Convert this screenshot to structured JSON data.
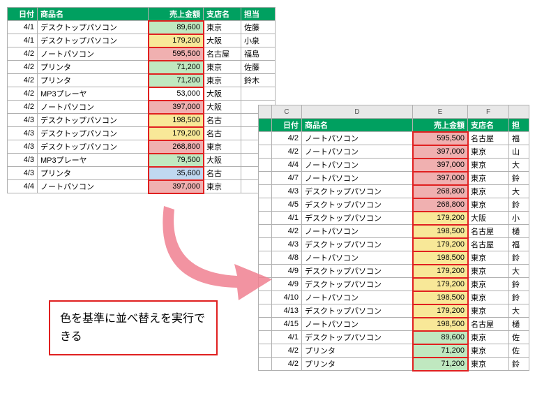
{
  "highlight_box_color": "#e02020",
  "arrow_color": "#f08090",
  "callout_text": "色を基準に並べ替えを実行できる",
  "colors": {
    "pink": "#f0b0b0",
    "yellow": "#f8e898",
    "green": "#c0e8c0",
    "blue": "#c0d8f0"
  },
  "left": {
    "headers": [
      "日付",
      "商品名",
      "売上金額",
      "支店名",
      "担当"
    ],
    "rows": [
      {
        "d": "4/1",
        "n": "デスクトップパソコン",
        "a": "89,600",
        "b": "東京",
        "p": "佐藤",
        "c": "green"
      },
      {
        "d": "4/1",
        "n": "デスクトップパソコン",
        "a": "179,200",
        "b": "大阪",
        "p": "小泉",
        "c": "yellow"
      },
      {
        "d": "4/2",
        "n": "ノートパソコン",
        "a": "595,500",
        "b": "名古屋",
        "p": "福島",
        "c": "pink"
      },
      {
        "d": "4/2",
        "n": "プリンタ",
        "a": "71,200",
        "b": "東京",
        "p": "佐藤",
        "c": "green"
      },
      {
        "d": "4/2",
        "n": "プリンタ",
        "a": "71,200",
        "b": "東京",
        "p": "鈴木",
        "c": "green"
      },
      {
        "d": "4/2",
        "n": "MP3プレーヤ",
        "a": "53,000",
        "b": "大阪",
        "p": "",
        "c": ""
      },
      {
        "d": "4/2",
        "n": "ノートパソコン",
        "a": "397,000",
        "b": "大阪",
        "p": "",
        "c": "pink"
      },
      {
        "d": "4/3",
        "n": "デスクトップパソコン",
        "a": "198,500",
        "b": "名古",
        "p": "",
        "c": "yellow"
      },
      {
        "d": "4/3",
        "n": "デスクトップパソコン",
        "a": "179,200",
        "b": "名古",
        "p": "",
        "c": "yellow"
      },
      {
        "d": "4/3",
        "n": "デスクトップパソコン",
        "a": "268,800",
        "b": "東京",
        "p": "",
        "c": "pink"
      },
      {
        "d": "4/3",
        "n": "MP3プレーヤ",
        "a": "79,500",
        "b": "大阪",
        "p": "",
        "c": "green"
      },
      {
        "d": "4/3",
        "n": "プリンタ",
        "a": "35,600",
        "b": "名古",
        "p": "",
        "c": "blue"
      },
      {
        "d": "4/4",
        "n": "ノートパソコン",
        "a": "397,000",
        "b": "東京",
        "p": "",
        "c": "pink"
      }
    ]
  },
  "right": {
    "col_labels": [
      "",
      "C",
      "D",
      "E",
      "F",
      ""
    ],
    "headers": [
      "日付",
      "商品名",
      "売上金額",
      "支店名",
      "担"
    ],
    "rows": [
      {
        "d": "4/2",
        "n": "ノートパソコン",
        "a": "595,500",
        "b": "名古屋",
        "p": "福",
        "c": "pink"
      },
      {
        "d": "4/2",
        "n": "ノートパソコン",
        "a": "397,000",
        "b": "東京",
        "p": "山",
        "c": "pink"
      },
      {
        "d": "4/4",
        "n": "ノートパソコン",
        "a": "397,000",
        "b": "東京",
        "p": "大",
        "c": "pink"
      },
      {
        "d": "4/7",
        "n": "ノートパソコン",
        "a": "397,000",
        "b": "東京",
        "p": "鈴",
        "c": "pink"
      },
      {
        "d": "4/3",
        "n": "デスクトップパソコン",
        "a": "268,800",
        "b": "東京",
        "p": "大",
        "c": "pink"
      },
      {
        "d": "4/5",
        "n": "デスクトップパソコン",
        "a": "268,800",
        "b": "東京",
        "p": "鈴",
        "c": "pink"
      },
      {
        "d": "4/1",
        "n": "デスクトップパソコン",
        "a": "179,200",
        "b": "大阪",
        "p": "小",
        "c": "yellow"
      },
      {
        "d": "4/2",
        "n": "ノートパソコン",
        "a": "198,500",
        "b": "名古屋",
        "p": "樋",
        "c": "yellow"
      },
      {
        "d": "4/3",
        "n": "デスクトップパソコン",
        "a": "179,200",
        "b": "名古屋",
        "p": "福",
        "c": "yellow"
      },
      {
        "d": "4/8",
        "n": "ノートパソコン",
        "a": "198,500",
        "b": "東京",
        "p": "鈴",
        "c": "yellow"
      },
      {
        "d": "4/9",
        "n": "デスクトップパソコン",
        "a": "179,200",
        "b": "東京",
        "p": "大",
        "c": "yellow"
      },
      {
        "d": "4/9",
        "n": "デスクトップパソコン",
        "a": "179,200",
        "b": "東京",
        "p": "鈴",
        "c": "yellow"
      },
      {
        "d": "4/10",
        "n": "ノートパソコン",
        "a": "198,500",
        "b": "東京",
        "p": "鈴",
        "c": "yellow"
      },
      {
        "d": "4/13",
        "n": "デスクトップパソコン",
        "a": "179,200",
        "b": "東京",
        "p": "大",
        "c": "yellow"
      },
      {
        "d": "4/15",
        "n": "ノートパソコン",
        "a": "198,500",
        "b": "名古屋",
        "p": "樋",
        "c": "yellow"
      },
      {
        "d": "4/1",
        "n": "デスクトップパソコン",
        "a": "89,600",
        "b": "東京",
        "p": "佐",
        "c": "green"
      },
      {
        "d": "4/2",
        "n": "プリンタ",
        "a": "71,200",
        "b": "東京",
        "p": "佐",
        "c": "green"
      },
      {
        "d": "4/2",
        "n": "プリンタ",
        "a": "71,200",
        "b": "東京",
        "p": "鈴",
        "c": "green"
      }
    ]
  }
}
